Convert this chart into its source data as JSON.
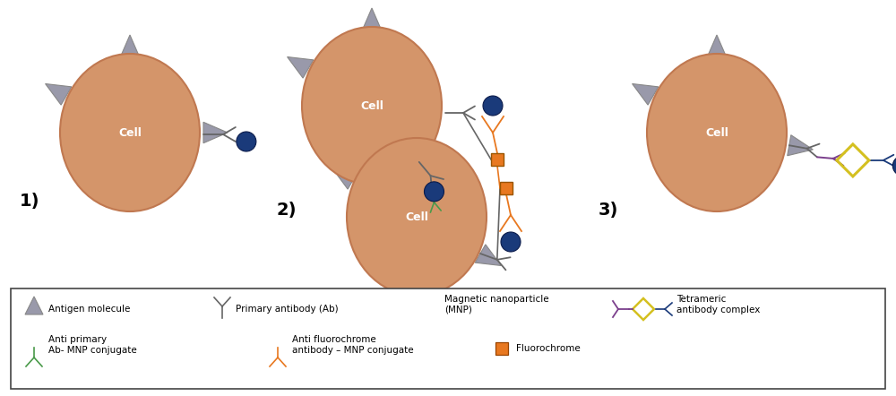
{
  "cell_color": "#D4956A",
  "cell_edge_color": "#C07850",
  "cell_text": "Cell",
  "cell_text_color": "white",
  "mnp_color": "#1a3a7a",
  "antigen_color": "#9999aa",
  "antigen_edge": "#888888",
  "ab_color": "#666666",
  "green_ab_color": "#4a9a4a",
  "orange_ab_color": "#E87820",
  "purple_color": "#7B3F8C",
  "yellow_color": "#D4C020",
  "fluorochrome_color": "#E87820",
  "background": "white",
  "legend_box_color": "#444444",
  "title1": "1)",
  "title2": "2)",
  "title3": "3)",
  "cell_label_fontsize": 9,
  "title_fontsize": 14,
  "legend_fontsize": 7.5
}
